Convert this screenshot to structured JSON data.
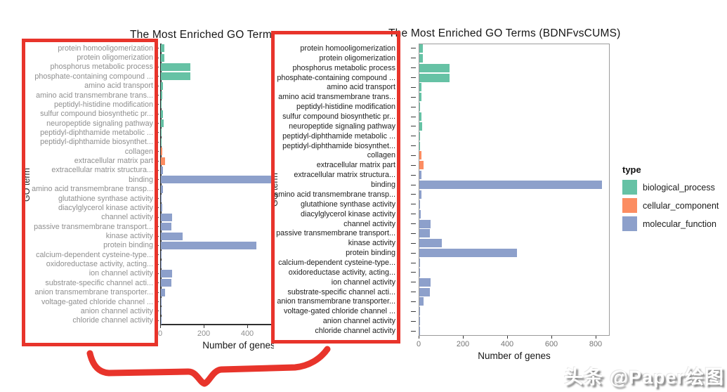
{
  "watermark": "头条 @Paper绘图",
  "annotations": {
    "color": "#e8342b"
  },
  "legend": {
    "title": "type",
    "items": [
      {
        "label": "biological_process",
        "color": "#66C2A5"
      },
      {
        "label": "cellular_component",
        "color": "#FC8D62"
      },
      {
        "label": "molecular_function",
        "color": "#8DA0CB"
      }
    ]
  },
  "chart_data": {
    "type": "bar",
    "orientation": "horizontal",
    "title": "The Most Enriched GO Terms (BDNFvsCUMS)",
    "xlabel": "Number of genes",
    "ylabel": "GO term",
    "xlim": [
      0,
      860
    ],
    "xticks": [
      0,
      200,
      400,
      600,
      800
    ],
    "grid": false,
    "legend_position": "right",
    "type_colors": {
      "biological_process": "#66C2A5",
      "cellular_component": "#FC8D62",
      "molecular_function": "#8DA0CB"
    },
    "categories": [
      "protein homooligomerization",
      "protein oligomerization",
      "phosphorus metabolic process",
      "phosphate-containing compound ...",
      "amino acid transport",
      "amino acid transmembrane trans...",
      "peptidyl-histidine modification",
      "sulfur compound biosynthetic pr...",
      "neuropeptide signaling pathway",
      "peptidyl-diphthamide metabolic ...",
      "peptidyl-diphthamide biosynthet...",
      "collagen",
      "extracellular matrix part",
      "extracellular matrix structura...",
      "binding",
      "amino acid transmembrane transp...",
      "glutathione synthase activity",
      "diacylglycerol kinase activity",
      "channel activity",
      "passive transmembrane transport...",
      "kinase activity",
      "protein binding",
      "calcium-dependent cysteine-type...",
      "oxidoreductase activity, acting...",
      "ion channel activity",
      "substrate-specific channel acti...",
      "anion transmembrane transporter...",
      "voltage-gated chloride channel ...",
      "anion channel activity",
      "chloride channel activity"
    ],
    "values": [
      15,
      15,
      135,
      135,
      10,
      8,
      3,
      10,
      12,
      2,
      2,
      8,
      20,
      10,
      825,
      9,
      3,
      6,
      50,
      48,
      100,
      440,
      4,
      3,
      50,
      48,
      18,
      3,
      3,
      3
    ],
    "types": [
      "biological_process",
      "biological_process",
      "biological_process",
      "biological_process",
      "biological_process",
      "biological_process",
      "biological_process",
      "biological_process",
      "biological_process",
      "biological_process",
      "biological_process",
      "cellular_component",
      "cellular_component",
      "molecular_function",
      "molecular_function",
      "molecular_function",
      "molecular_function",
      "molecular_function",
      "molecular_function",
      "molecular_function",
      "molecular_function",
      "molecular_function",
      "molecular_function",
      "molecular_function",
      "molecular_function",
      "molecular_function",
      "molecular_function",
      "molecular_function",
      "molecular_function",
      "molecular_function"
    ]
  }
}
